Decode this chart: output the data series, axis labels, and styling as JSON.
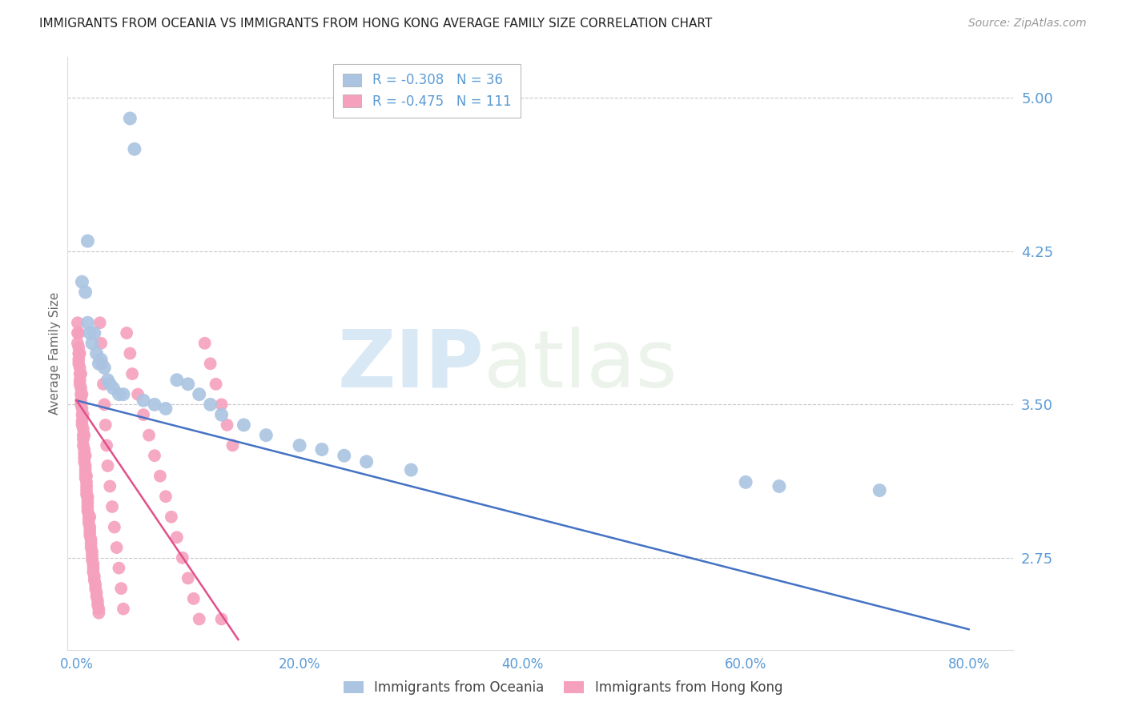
{
  "title": "IMMIGRANTS FROM OCEANIA VS IMMIGRANTS FROM HONG KONG AVERAGE FAMILY SIZE CORRELATION CHART",
  "source": "Source: ZipAtlas.com",
  "ylabel": "Average Family Size",
  "watermark_zip": "ZIP",
  "watermark_atlas": "atlas",
  "y_tick_labels": [
    "5.00",
    "4.25",
    "3.50",
    "2.75"
  ],
  "y_tick_values": [
    5.0,
    4.25,
    3.5,
    2.75
  ],
  "x_tick_labels": [
    "0.0%",
    "20.0%",
    "40.0%",
    "60.0%",
    "80.0%"
  ],
  "x_tick_values": [
    0.0,
    0.2,
    0.4,
    0.6,
    0.8
  ],
  "ylim": [
    2.3,
    5.2
  ],
  "xlim": [
    -0.008,
    0.84
  ],
  "series1_label": "Immigrants from Oceania",
  "series1_color": "#aac4e2",
  "series1_R": "-0.308",
  "series1_N": "36",
  "series2_label": "Immigrants from Hong Kong",
  "series2_color": "#f5a0bc",
  "series2_R": "-0.475",
  "series2_N": "111",
  "line1_color": "#4472c4",
  "line2_color": "#e0508a",
  "axis_color": "#5b9bd5",
  "grid_color": "#c8c8c8",
  "background_color": "#ffffff",
  "oceania_x": [
    0.048,
    0.052,
    0.005,
    0.008,
    0.01,
    0.012,
    0.014,
    0.016,
    0.018,
    0.02,
    0.022,
    0.025,
    0.028,
    0.03,
    0.033,
    0.038,
    0.042,
    0.06,
    0.07,
    0.08,
    0.09,
    0.1,
    0.11,
    0.12,
    0.13,
    0.15,
    0.17,
    0.2,
    0.22,
    0.24,
    0.26,
    0.3,
    0.6,
    0.63,
    0.72,
    0.01
  ],
  "oceania_y": [
    4.9,
    4.75,
    4.1,
    4.05,
    3.9,
    3.85,
    3.8,
    3.85,
    3.75,
    3.7,
    3.72,
    3.68,
    3.62,
    3.6,
    3.58,
    3.55,
    3.55,
    3.52,
    3.5,
    3.48,
    3.62,
    3.6,
    3.55,
    3.5,
    3.45,
    3.4,
    3.35,
    3.3,
    3.28,
    3.25,
    3.22,
    3.18,
    3.12,
    3.1,
    3.08,
    4.3
  ],
  "hongkong_x": [
    0.001,
    0.001,
    0.001,
    0.002,
    0.002,
    0.002,
    0.002,
    0.003,
    0.003,
    0.003,
    0.003,
    0.004,
    0.004,
    0.004,
    0.004,
    0.005,
    0.005,
    0.005,
    0.005,
    0.006,
    0.006,
    0.006,
    0.006,
    0.007,
    0.007,
    0.007,
    0.007,
    0.008,
    0.008,
    0.008,
    0.008,
    0.009,
    0.009,
    0.009,
    0.009,
    0.01,
    0.01,
    0.01,
    0.01,
    0.011,
    0.011,
    0.011,
    0.012,
    0.012,
    0.012,
    0.013,
    0.013,
    0.013,
    0.014,
    0.014,
    0.014,
    0.015,
    0.015,
    0.015,
    0.016,
    0.016,
    0.017,
    0.017,
    0.018,
    0.018,
    0.019,
    0.019,
    0.02,
    0.02,
    0.021,
    0.022,
    0.023,
    0.024,
    0.025,
    0.026,
    0.027,
    0.028,
    0.03,
    0.032,
    0.034,
    0.036,
    0.038,
    0.04,
    0.042,
    0.045,
    0.048,
    0.05,
    0.055,
    0.06,
    0.065,
    0.07,
    0.075,
    0.08,
    0.085,
    0.09,
    0.095,
    0.1,
    0.105,
    0.11,
    0.115,
    0.12,
    0.125,
    0.13,
    0.135,
    0.14,
    0.002,
    0.003,
    0.004,
    0.005,
    0.006,
    0.007,
    0.008,
    0.009,
    0.01,
    0.012,
    0.13
  ],
  "hongkong_y": [
    3.9,
    3.85,
    3.8,
    3.78,
    3.75,
    3.72,
    3.7,
    3.68,
    3.65,
    3.62,
    3.6,
    3.58,
    3.55,
    3.52,
    3.5,
    3.48,
    3.45,
    3.42,
    3.4,
    3.38,
    3.35,
    3.33,
    3.3,
    3.28,
    3.26,
    3.24,
    3.22,
    3.2,
    3.18,
    3.16,
    3.14,
    3.12,
    3.1,
    3.08,
    3.06,
    3.04,
    3.02,
    3.0,
    2.98,
    2.96,
    2.94,
    2.92,
    2.9,
    2.88,
    2.86,
    2.84,
    2.82,
    2.8,
    2.78,
    2.76,
    2.74,
    2.72,
    2.7,
    2.68,
    2.66,
    2.64,
    2.62,
    2.6,
    2.58,
    2.56,
    2.54,
    2.52,
    2.5,
    2.48,
    3.9,
    3.8,
    3.7,
    3.6,
    3.5,
    3.4,
    3.3,
    3.2,
    3.1,
    3.0,
    2.9,
    2.8,
    2.7,
    2.6,
    2.5,
    3.85,
    3.75,
    3.65,
    3.55,
    3.45,
    3.35,
    3.25,
    3.15,
    3.05,
    2.95,
    2.85,
    2.75,
    2.65,
    2.55,
    2.45,
    3.8,
    3.7,
    3.6,
    3.5,
    3.4,
    3.3,
    3.85,
    3.75,
    3.65,
    3.55,
    3.45,
    3.35,
    3.25,
    3.15,
    3.05,
    2.95,
    2.45
  ],
  "line1_x": [
    0.0,
    0.8
  ],
  "line1_y": [
    3.52,
    2.4
  ],
  "line2_x": [
    0.0,
    0.145
  ],
  "line2_y": [
    3.52,
    2.35
  ]
}
